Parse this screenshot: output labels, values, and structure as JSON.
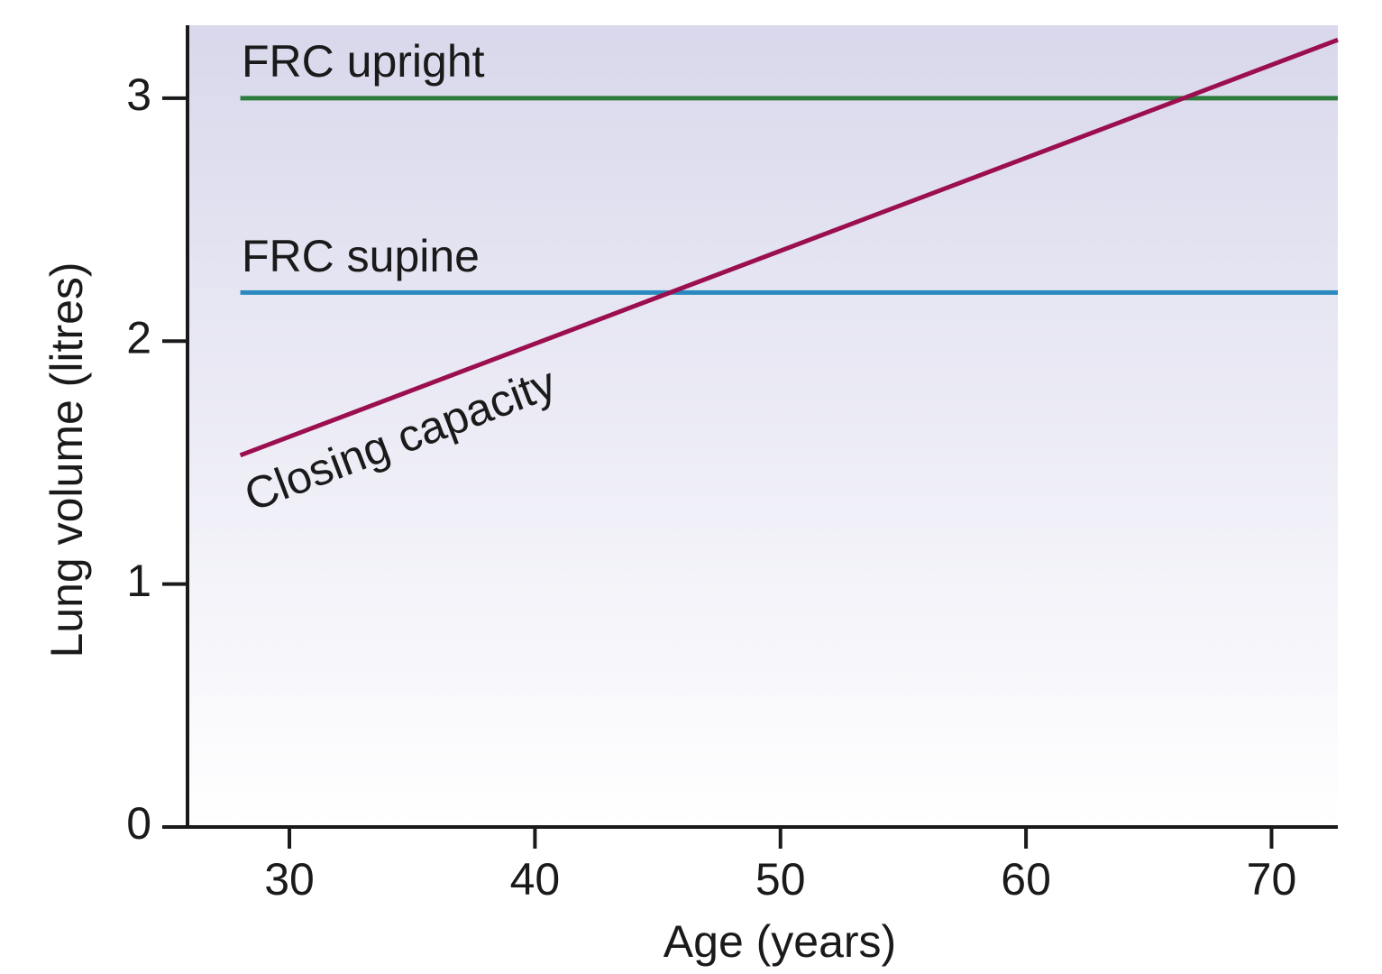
{
  "chart_data": {
    "type": "line",
    "x_label": "Age (years)",
    "y_label": "Lung volume (litres)",
    "x": [
      28,
      72.7
    ],
    "series": [
      {
        "name": "FRC upright",
        "color": "#2e7d3e",
        "values": [
          3,
          3
        ]
      },
      {
        "name": "FRC supine",
        "color": "#2a8ac0",
        "values": [
          2.2,
          2.2
        ]
      },
      {
        "name": "Closing capacity",
        "color": "#9b0e4f",
        "values": [
          1.53,
          3.24
        ]
      }
    ],
    "xlim": [
      25.85,
      72.7
    ],
    "xticks": [
      30,
      40,
      50,
      60,
      70
    ],
    "ylim": [
      0,
      3.3
    ],
    "yticks": [
      0,
      1,
      2,
      3
    ],
    "grid": false
  }
}
